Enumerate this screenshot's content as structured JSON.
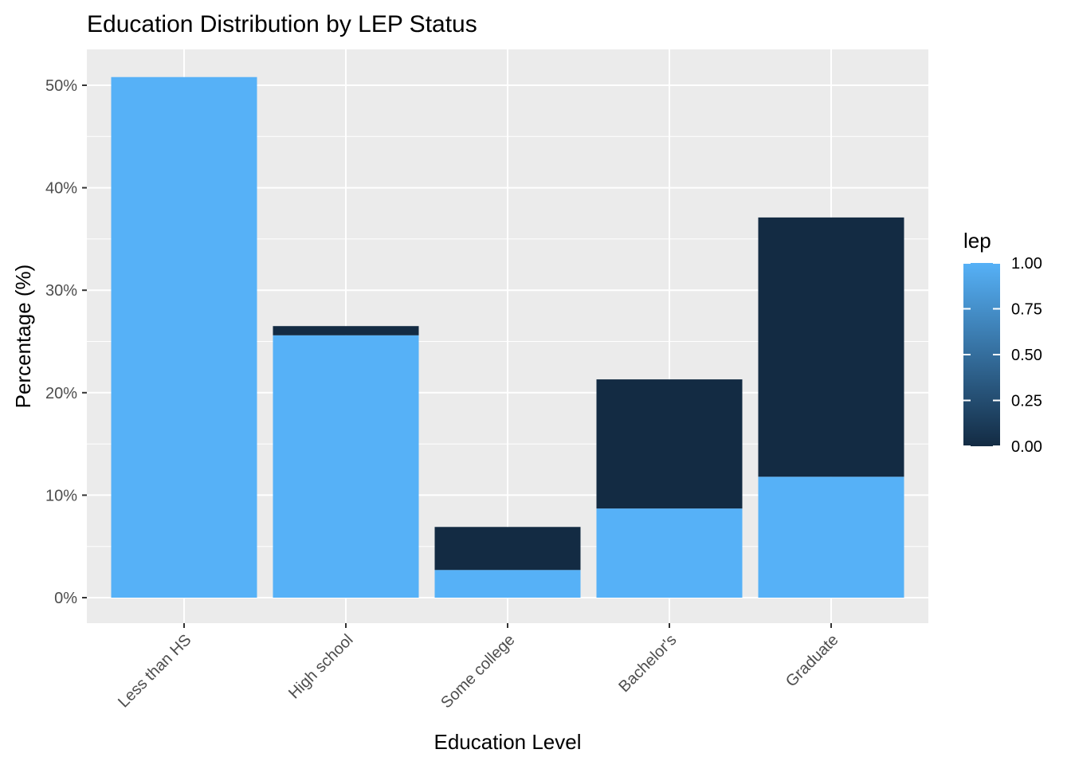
{
  "chart_data": {
    "type": "bar",
    "stacked": true,
    "title": "Education Distribution by LEP Status",
    "xlabel": "Education Level",
    "ylabel": "Percentage (%)",
    "categories": [
      "Less than HS",
      "High school",
      "Some college",
      "Bachelor's",
      "Graduate"
    ],
    "series": [
      {
        "lep": 1,
        "color": "#56B1F7",
        "values": [
          50.8,
          25.6,
          2.7,
          8.7,
          11.8
        ]
      },
      {
        "lep": 0,
        "color": "#132B43",
        "values": [
          0.0,
          0.9,
          4.2,
          12.6,
          25.3
        ]
      }
    ],
    "ylim": [
      0,
      53
    ],
    "y_ticks": [
      0,
      10,
      20,
      30,
      40,
      50
    ],
    "y_tick_labels": [
      "0%",
      "10%",
      "20%",
      "30%",
      "40%",
      "50%"
    ],
    "grid": true,
    "panel_background": "#EBEBEB",
    "grid_color": "#FFFFFF",
    "legend": {
      "title": "lep",
      "position": "right",
      "type": "colorbar",
      "low_color": "#132B43",
      "high_color": "#56B1F7",
      "ticks": [
        1.0,
        0.75,
        0.5,
        0.25,
        0.0
      ],
      "tick_labels": [
        "1.00",
        "0.75",
        "0.50",
        "0.25",
        "0.00"
      ]
    }
  }
}
